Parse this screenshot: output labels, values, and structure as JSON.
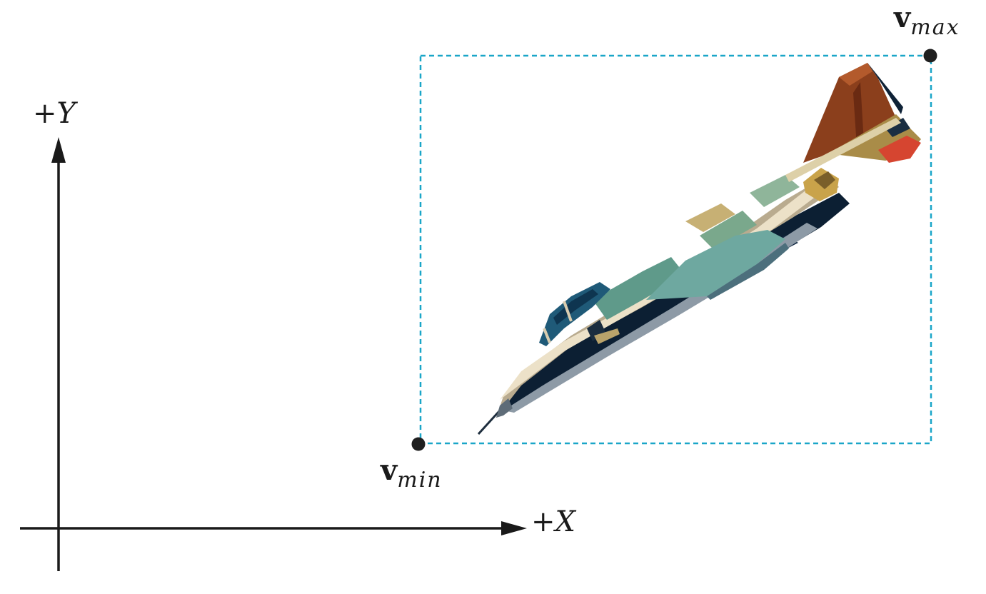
{
  "axes": {
    "x_label_sign": "+",
    "x_label_var": "X",
    "y_label_sign": "+",
    "y_label_var": "Y"
  },
  "bounding_box": {
    "min_label_main": "v",
    "min_label_sub": "min",
    "max_label_main": "v",
    "max_label_sub": "max"
  },
  "colors": {
    "axis": "#1a1a1a",
    "bounding_box": "#1aa6c8",
    "corner_points": "#1f1f1f"
  },
  "icons": {
    "object": "fighter-jet-icon"
  }
}
